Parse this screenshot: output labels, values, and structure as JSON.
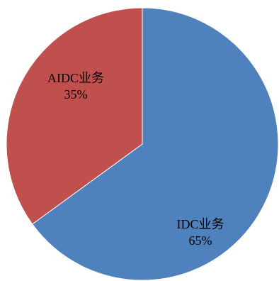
{
  "chart_data": {
    "type": "pie",
    "title": "",
    "categories": [
      "IDC业务",
      "AIDC业务"
    ],
    "values": [
      65,
      35
    ],
    "percent_labels": [
      "65%",
      "35%"
    ],
    "colors": [
      "#4F81BD",
      "#C0504D"
    ],
    "start_angle": "12 o'clock",
    "direction": "clockwise",
    "legend": "none",
    "data_labels": "inside slices (category name above percentage)"
  }
}
